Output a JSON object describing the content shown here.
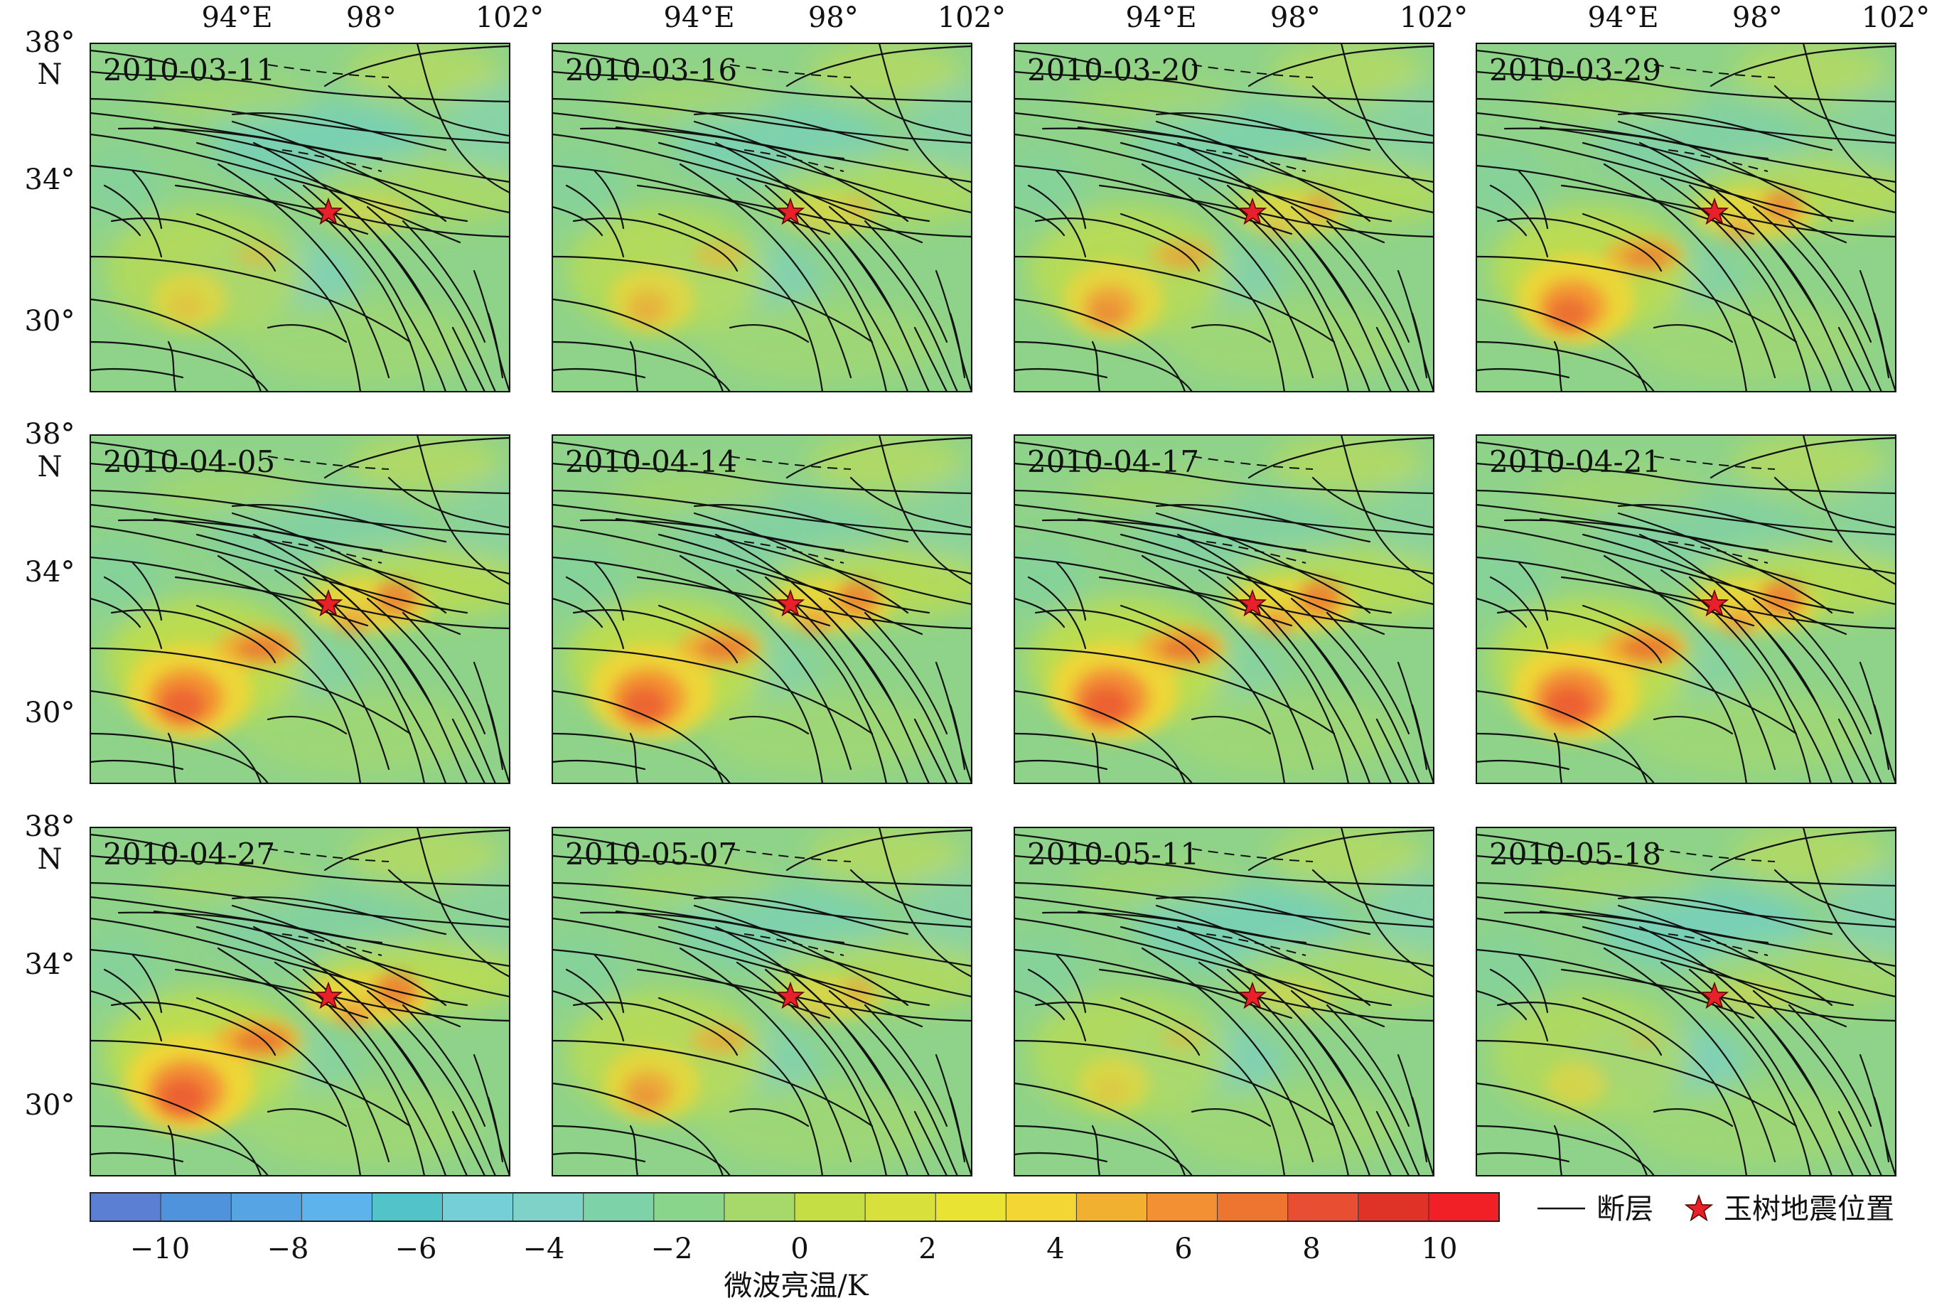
{
  "top_axis_labels": [
    "94°E",
    "98°",
    "102°"
  ],
  "left_axis_labels": [
    "38°",
    "N",
    "34°",
    "30°"
  ],
  "panels": [
    {
      "date": "2010-03-11",
      "hot": 0.25
    },
    {
      "date": "2010-03-16",
      "hot": 0.4
    },
    {
      "date": "2010-03-20",
      "hot": 0.6
    },
    {
      "date": "2010-03-29",
      "hot": 0.85
    },
    {
      "date": "2010-04-05",
      "hot": 0.95
    },
    {
      "date": "2010-04-14",
      "hot": 0.95
    },
    {
      "date": "2010-04-17",
      "hot": 1.0
    },
    {
      "date": "2010-04-21",
      "hot": 1.0
    },
    {
      "date": "2010-04-27",
      "hot": 1.0
    },
    {
      "date": "2010-05-07",
      "hot": 0.55
    },
    {
      "date": "2010-05-11",
      "hot": 0.2
    },
    {
      "date": "2010-05-18",
      "hot": 0.05
    }
  ],
  "colorbar": {
    "colors": [
      "#5a7fd3",
      "#4f93dc",
      "#56a4e4",
      "#5db3ec",
      "#52c4c9",
      "#74cfd6",
      "#7fd2c8",
      "#7dd2a8",
      "#8ad58c",
      "#a6d86a",
      "#c4de44",
      "#d8e03c",
      "#e9e334",
      "#f3d534",
      "#f2b030",
      "#f39034",
      "#ee7530",
      "#e84e32",
      "#de3326",
      "#f02026"
    ],
    "ticks": [
      "−10",
      "−8",
      "−6",
      "−4",
      "−2",
      "0",
      "2",
      "4",
      "6",
      "8",
      "10"
    ],
    "title": "微波亮温/K"
  },
  "legend": {
    "fault_label": "断层",
    "epicenter_label": "玉树地震位置",
    "fault_color": "#111111",
    "epicenter_color": "#e8202a"
  }
}
